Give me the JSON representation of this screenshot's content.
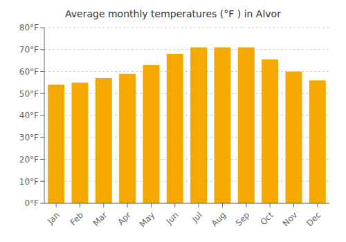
{
  "chart_data": {
    "type": "bar",
    "title": "Average monthly temperatures (°F ) in Alvor",
    "categories": [
      "Jan",
      "Feb",
      "Mar",
      "Apr",
      "May",
      "Jun",
      "Jul",
      "Aug",
      "Sep",
      "Oct",
      "Nov",
      "Dec"
    ],
    "values": [
      54,
      55,
      57,
      59,
      63,
      68,
      71,
      71,
      71,
      65.5,
      60,
      56
    ],
    "color": "#F5A800",
    "ylim": [
      0,
      80
    ],
    "yticks": [
      {
        "value": 0,
        "label": "0°F"
      },
      {
        "value": 10,
        "label": "10°F"
      },
      {
        "value": 20,
        "label": "20°F"
      },
      {
        "value": 30,
        "label": "30°F"
      },
      {
        "value": 40,
        "label": "40°F"
      },
      {
        "value": 50,
        "label": "50°F"
      },
      {
        "value": 60,
        "label": "60°F"
      },
      {
        "value": 70,
        "label": "70°F"
      },
      {
        "value": 80,
        "label": "80°F"
      }
    ],
    "grid": true
  }
}
